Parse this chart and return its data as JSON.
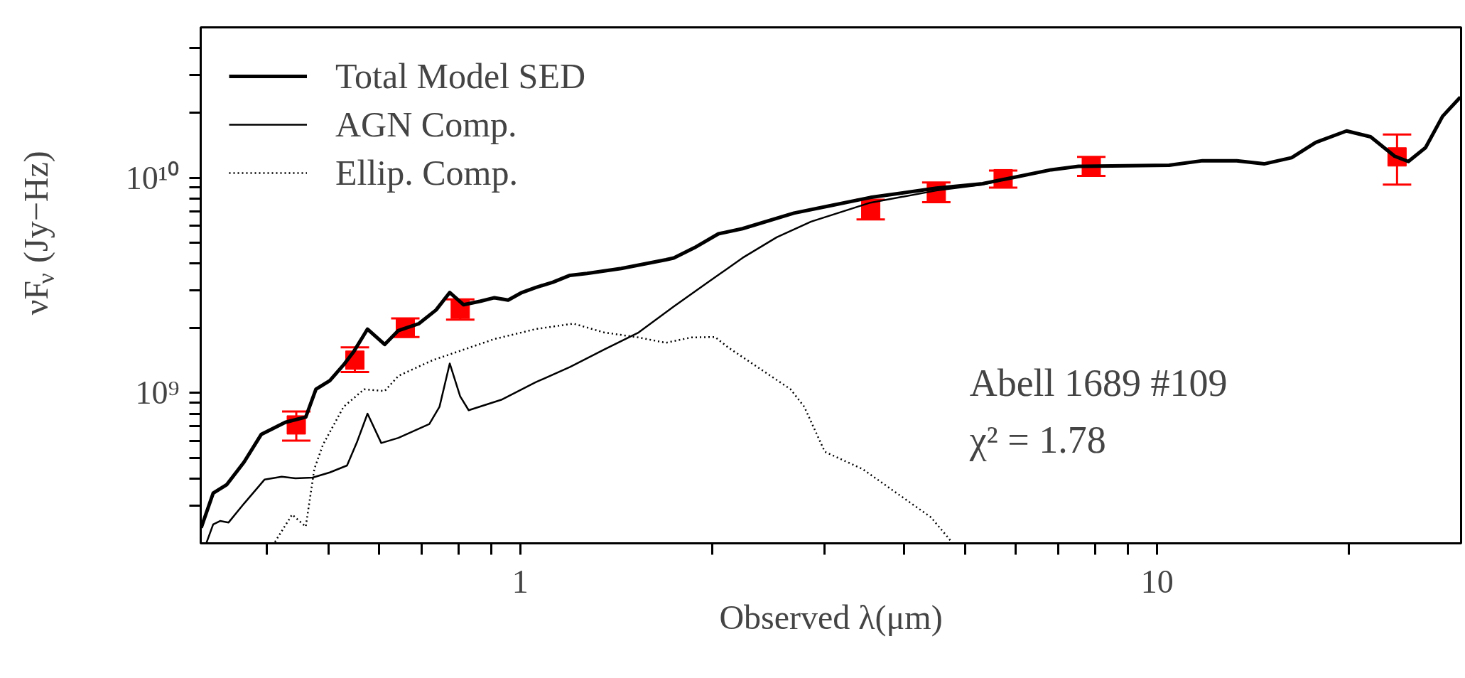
{
  "chart_data": {
    "type": "line",
    "xlabel": "Observed λ(μm)",
    "ylabel": "νF$_{ν}$ (Jy−Hz)",
    "log": "xy",
    "xlim": [
      0.315,
      30
    ],
    "ylim": [
      200000000.0,
      50000000000.0
    ],
    "xticks": [
      {
        "value": 0.4,
        "label": null
      },
      {
        "value": 0.5,
        "label": null
      },
      {
        "value": 0.6,
        "label": null
      },
      {
        "value": 0.7,
        "label": null
      },
      {
        "value": 0.8,
        "label": null
      },
      {
        "value": 0.9,
        "label": null
      },
      1,
      {
        "value": 2,
        "label": null
      },
      {
        "value": 3,
        "label": null
      },
      {
        "value": 4,
        "label": null
      },
      {
        "value": 5,
        "label": null
      },
      {
        "value": 6,
        "label": null
      },
      {
        "value": 7,
        "label": null
      },
      {
        "value": 8,
        "label": null
      },
      {
        "value": 9,
        "label": null
      },
      10,
      {
        "value": 20,
        "label": null
      }
    ],
    "yticks": [
      {
        "value": 300000000.0,
        "label": null
      },
      {
        "value": 400000000.0,
        "label": null
      },
      {
        "value": 500000000.0,
        "label": null
      },
      {
        "value": 600000000.0,
        "label": null
      },
      {
        "value": 700000000.0,
        "label": null
      },
      {
        "value": 800000000.0,
        "label": null
      },
      {
        "value": 900000000.0,
        "label": null
      },
      {
        "value": 1000000000.0,
        "label": "10⁹"
      },
      {
        "value": 2000000000.0,
        "label": null
      },
      {
        "value": 3000000000.0,
        "label": null
      },
      {
        "value": 4000000000.0,
        "label": null
      },
      {
        "value": 5000000000.0,
        "label": null
      },
      {
        "value": 6000000000.0,
        "label": null
      },
      {
        "value": 7000000000.0,
        "label": null
      },
      {
        "value": 8000000000.0,
        "label": null
      },
      {
        "value": 9000000000.0,
        "label": null
      },
      {
        "value": 10000000000.0,
        "label": "10¹⁰"
      },
      {
        "value": 20000000000.0,
        "label": null
      },
      {
        "value": 30000000000.0,
        "label": null
      },
      {
        "value": 40000000000.0,
        "label": null
      }
    ],
    "legend": "top left",
    "annotations": [
      "Abell 1689 #109",
      "χ² = 1.78"
    ],
    "series": [
      {
        "name": "Total Model SED",
        "color": "#000000",
        "line_style": "solid",
        "x": [
          0.3155,
          0.3295,
          0.3462,
          0.3684,
          0.392,
          0.4276,
          0.4605,
          0.4778,
          0.5023,
          0.528,
          0.548,
          0.5757,
          0.6125,
          0.6437,
          0.6934,
          0.7377,
          0.775,
          0.8149,
          0.8667,
          0.9109,
          0.9572,
          1.006,
          1.057,
          1.125,
          1.197,
          1.273,
          1.441,
          1.693,
          1.742,
          1.877,
          2.047,
          2.233,
          2.689,
          3.045,
          3.546,
          4.5,
          5.319,
          6.022,
          6.816,
          7.525,
          10.44,
          11.78,
          13.33,
          14.72,
          16.26,
          17.74,
          19.83,
          21.63,
          23.59,
          24.79,
          26.38,
          28.06,
          29.92
        ],
        "values": [
          236000000.0,
          342000000.0,
          375000000.0,
          477000000.0,
          641000000.0,
          730000000.0,
          772000000.0,
          1040000000.0,
          1140000000.0,
          1350000000.0,
          1560000000.0,
          1980000000.0,
          1680000000.0,
          1950000000.0,
          2100000000.0,
          2430000000.0,
          2930000000.0,
          2570000000.0,
          2670000000.0,
          2770000000.0,
          2700000000.0,
          2930000000.0,
          3090000000.0,
          3270000000.0,
          3520000000.0,
          3590000000.0,
          3790000000.0,
          4160000000.0,
          4240000000.0,
          4730000000.0,
          5490000000.0,
          5800000000.0,
          6850000000.0,
          7380000000.0,
          8100000000.0,
          8950000000.0,
          9390000000.0,
          10110000000.0,
          10890000000.0,
          11300000000.0,
          11430000000.0,
          12000000000.0,
          12000000000.0,
          11600000000.0,
          12400000000.0,
          14600000000.0,
          16500000000.0,
          15500000000.0,
          12600000000.0,
          11900000000.0,
          13800000000.0,
          19300000000.0,
          23700000000.0
        ]
      },
      {
        "name": "AGN Comp.",
        "color": "#000000",
        "line_style": "solid",
        "x": [
          0.3214,
          0.3295,
          0.3378,
          0.3484,
          0.3684,
          0.3969,
          0.4222,
          0.4437,
          0.4721,
          0.5023,
          0.5346,
          0.5548,
          0.5757,
          0.605,
          0.6437,
          0.7199,
          0.7468,
          0.775,
          0.8047,
          0.8299,
          0.9337,
          1.057,
          1.197,
          1.354,
          1.534,
          1.742,
          1.972,
          2.233,
          2.527,
          2.861,
          3.546,
          4.5,
          5.319,
          6.022,
          6.816,
          7.525,
          10.44
        ],
        "values": [
          200000000.0,
          245000000.0,
          254000000.0,
          250000000.0,
          306000000.0,
          396000000.0,
          408000000.0,
          401000000.0,
          404000000.0,
          427000000.0,
          460000000.0,
          596000000.0,
          801000000.0,
          585000000.0,
          618000000.0,
          717000000.0,
          862000000.0,
          1370000000.0,
          964000000.0,
          831000000.0,
          929000000.0,
          1120000000.0,
          1320000000.0,
          1590000000.0,
          1910000000.0,
          2520000000.0,
          3270000000.0,
          4240000000.0,
          5290000000.0,
          6250000000.0,
          7660000000.0,
          8720000000.0,
          9290000000.0,
          10110000000.0,
          10890000000.0,
          11300000000.0,
          11430000000.0
        ]
      },
      {
        "name": "Ellip. Comp.",
        "color": "#000000",
        "line_style": "dotted",
        "x": [
          0.412,
          0.4383,
          0.4605,
          0.475,
          0.49,
          0.528,
          0.5687,
          0.6125,
          0.6437,
          0.7288,
          0.785,
          0.9109,
          1.057,
          1.212,
          1.354,
          1.534,
          1.693,
          1.854,
          2.022,
          2.125,
          2.375,
          2.657,
          2.792,
          3.007,
          3.446,
          3.901,
          4.416,
          4.757
        ],
        "values": [
          203000000.0,
          272000000.0,
          239000000.0,
          443000000.0,
          574000000.0,
          862000000.0,
          1040000000.0,
          1020000000.0,
          1200000000.0,
          1420000000.0,
          1530000000.0,
          1780000000.0,
          1980000000.0,
          2100000000.0,
          1910000000.0,
          1810000000.0,
          1710000000.0,
          1810000000.0,
          1820000000.0,
          1620000000.0,
          1300000000.0,
          1040000000.0,
          862000000.0,
          533000000.0,
          443000000.0,
          342000000.0,
          264000000.0,
          203000000.0
        ]
      },
      {
        "type": "scatter",
        "color": "#ff0000",
        "marker": "square",
        "x": [
          0.445,
          0.55,
          0.66,
          0.805,
          3.55,
          4.5,
          5.73,
          7.88,
          23.8
        ],
        "values": [
          710000000.0,
          1420000000.0,
          2000000000.0,
          2450000000.0,
          7100000000.0,
          8600000000.0,
          9900000000.0,
          11300000000.0,
          12500000000.0
        ],
        "errors": [
          [
            600000000.0,
            820000000.0
          ],
          [
            1250000000.0,
            1630000000.0
          ],
          [
            1820000000.0,
            2220000000.0
          ],
          [
            2190000000.0,
            2720000000.0
          ],
          [
            6400000000.0,
            7900000000.0
          ],
          [
            7700000000.0,
            9500000000.0
          ],
          [
            9000000000.0,
            10800000000.0
          ],
          [
            10200000000.0,
            12500000000.0
          ],
          [
            9300000000.0,
            15900000000.0
          ]
        ]
      }
    ]
  }
}
